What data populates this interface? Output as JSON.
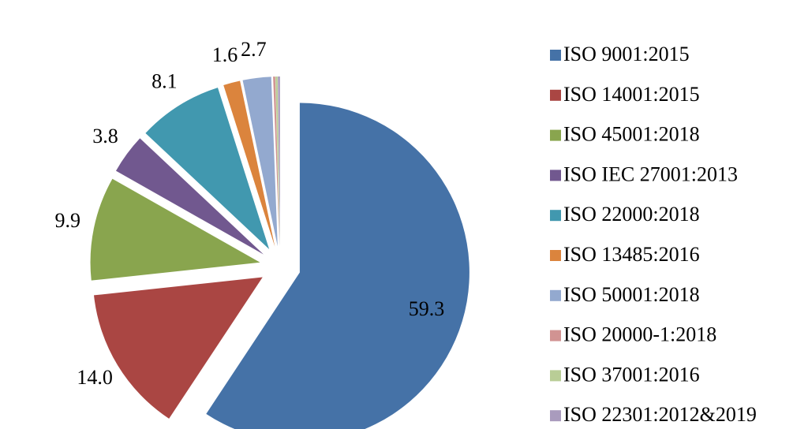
{
  "chart_data": {
    "type": "pie",
    "categories": [
      "ISO 9001:2015",
      "ISO 14001:2015",
      "ISO 45001:2018",
      "ISO IEC 27001:2013",
      "ISO 22000:2018",
      "ISO 13485:2016",
      "ISO 50001:2018",
      "ISO 20000-1:2018",
      "ISO 37001:2016",
      "ISO 22301:2012&2019"
    ],
    "values": [
      59.3,
      14.0,
      9.9,
      3.8,
      8.1,
      1.6,
      2.7,
      0.2,
      0.2,
      0.2
    ],
    "value_labels": [
      "59.3",
      "14.0",
      "9.9",
      "3.8",
      "8.1",
      "1.6",
      "2.7",
      null,
      null,
      null
    ],
    "colors": [
      "#4572a7",
      "#aa4643",
      "#89a54e",
      "#71588f",
      "#4198af",
      "#db843d",
      "#93a9cf",
      "#d19392",
      "#b9cd96",
      "#a99bbd"
    ],
    "legend": "right"
  }
}
